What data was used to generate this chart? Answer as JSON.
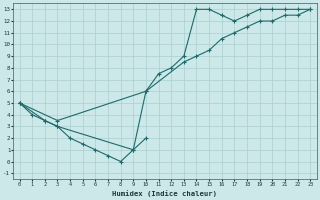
{
  "xlabel": "Humidex (Indice chaleur)",
  "bg_color": "#cde8e8",
  "grid_color": "#aacfcf",
  "line_color": "#1a6b6b",
  "xlim": [
    -0.5,
    23.5
  ],
  "ylim": [
    -1.5,
    13.5
  ],
  "xticks": [
    0,
    1,
    2,
    3,
    4,
    5,
    6,
    7,
    8,
    9,
    10,
    11,
    12,
    13,
    14,
    15,
    16,
    17,
    18,
    19,
    20,
    21,
    22,
    23
  ],
  "yticks": [
    -1,
    0,
    1,
    2,
    3,
    4,
    5,
    6,
    7,
    8,
    9,
    10,
    11,
    12,
    13
  ],
  "line1_x": [
    0,
    1,
    2,
    3,
    4,
    5,
    6,
    7,
    8,
    9,
    10
  ],
  "line1_y": [
    5,
    4,
    3.5,
    3,
    2,
    1.5,
    1,
    0.5,
    0,
    1,
    2
  ],
  "line2_x": [
    0,
    2,
    3,
    9,
    10,
    11,
    12,
    13,
    14,
    15,
    16,
    17,
    18,
    19,
    20,
    21,
    22,
    23
  ],
  "line2_y": [
    5,
    3.5,
    3,
    1,
    6,
    7.5,
    8,
    9,
    13,
    13,
    12.5,
    12,
    12.5,
    13,
    13,
    13,
    13,
    13
  ],
  "line3_x": [
    0,
    3,
    10,
    13,
    14,
    15,
    16,
    17,
    18,
    19,
    20,
    21,
    22,
    23
  ],
  "line3_y": [
    5,
    3.5,
    6,
    8.5,
    9,
    9.5,
    10.5,
    11,
    11.5,
    12,
    12,
    12.5,
    12.5,
    13
  ]
}
